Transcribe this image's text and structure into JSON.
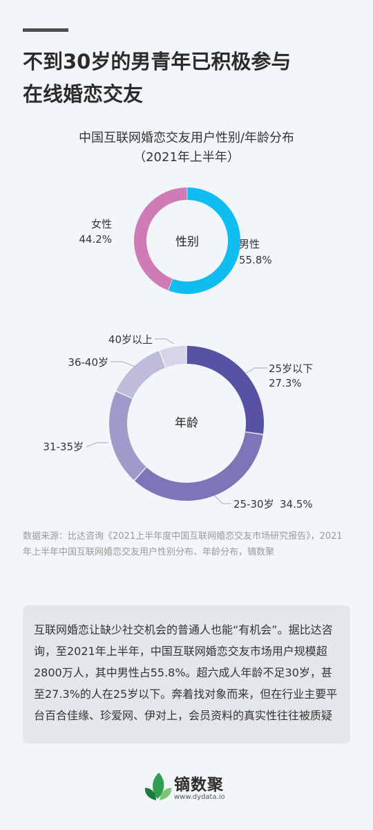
{
  "headline": [
    "不到30岁的男青年已积极参与",
    "在线婚恋交友"
  ],
  "chart_title": [
    "中国互联网婚恋交友用户性别/年龄分布",
    "（2021年上半年）"
  ],
  "colors": {
    "male": "#10bdf0",
    "female": "#cf7bb6",
    "age_under25": "#5752a2",
    "age_25_30": "#7b76b7",
    "age_31_35": "#9e9ac9",
    "age_36_40": "#bebbdb",
    "age_40plus": "#d6d4e8"
  },
  "chart_data": [
    {
      "type": "pie",
      "style": "donut",
      "center_label": "性别",
      "slices": [
        {
          "label": "男性",
          "value": 55.8,
          "value_text": "55.8%"
        },
        {
          "label": "女性",
          "value": 44.2,
          "value_text": "44.2%"
        }
      ]
    },
    {
      "type": "pie",
      "style": "donut",
      "center_label": "年龄",
      "slices": [
        {
          "label": "25岁以下",
          "value": 27.3,
          "value_text": "27.3%"
        },
        {
          "label": "25-30岁",
          "value": 34.5,
          "value_text": "34.5%"
        },
        {
          "label": "31-35岁",
          "value": 20
        },
        {
          "label": "36-40岁",
          "value": 12.5
        },
        {
          "label": "40岁以上",
          "value": 5.7
        }
      ]
    }
  ],
  "source": "数据来源：比达咨询《2021上半年度中国互联网婚恋交友市场研究报告》，2021年上半年中国互联网婚恋交友用户性别分布、年龄分布，镝数聚",
  "note": "互联网婚恋让缺少社交机会的普通人也能“有机会”。据比达咨询，至2021年上半年，中国互联网婚恋交友市场用户规模超2800万人，其中男性占55.8%。超六成人年龄不足30岁，甚至27.3%的人在25岁以下。奔着找对象而来，但在行业主要平台百合佳缘、珍爱网、伊对上，会员资料的真实性往往被质疑",
  "brand": {
    "name": "镝数聚",
    "url": "www.dydata.io"
  }
}
